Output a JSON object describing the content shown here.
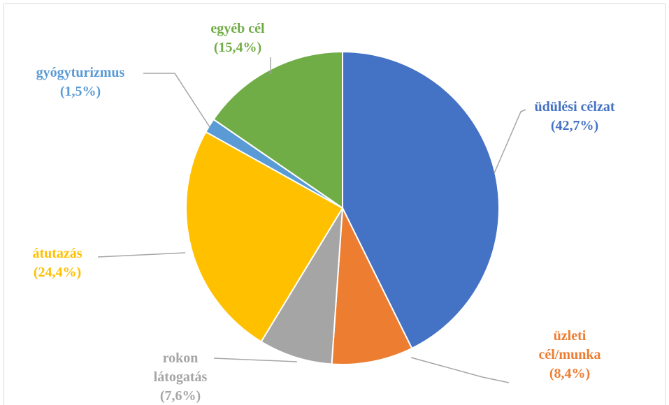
{
  "chart_data": {
    "type": "pie",
    "categories": [
      "üdülési célzat",
      "üzleti\ncél/munka",
      "rokon\nlátogatás",
      "átutazás",
      "gyógyturizmus",
      "egyéb cél"
    ],
    "values": [
      42.7,
      8.4,
      7.6,
      24.4,
      1.5,
      15.4
    ],
    "value_labels": [
      "(42,7%)",
      "(8,4%)",
      "(7,6%)",
      "(24,4%)",
      "(1,5%)",
      "(15,4%)"
    ],
    "colors": [
      "#4472c4",
      "#ed7d31",
      "#a5a5a5",
      "#ffc000",
      "#5b9bd5",
      "#70ad47"
    ]
  }
}
